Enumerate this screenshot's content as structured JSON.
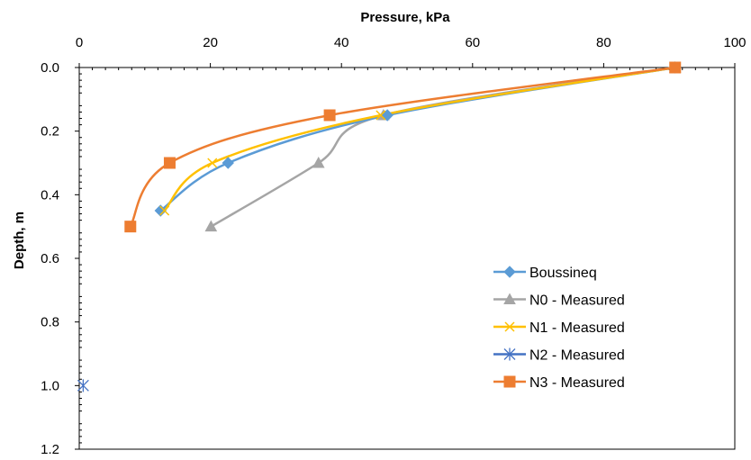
{
  "chart_data": {
    "type": "scatter",
    "title": "",
    "xlabel": "Pressure, kPa",
    "ylabel": "Depth, m",
    "xaxis_position": "top",
    "yaxis_reversed": true,
    "xlim": [
      0,
      100
    ],
    "ylim": [
      0,
      1.2
    ],
    "xticks": [
      0,
      20,
      40,
      60,
      80,
      100
    ],
    "yticks": [
      0.0,
      0.2,
      0.4,
      0.6,
      0.8,
      1.0,
      1.2
    ],
    "xtick_labels": [
      "0",
      "20",
      "40",
      "60",
      "80",
      "100"
    ],
    "ytick_labels": [
      "0.0",
      "0.2",
      "0.4",
      "0.6",
      "0.8",
      "1.0",
      "1.2"
    ],
    "grid": false,
    "legend_position": "bottom-right",
    "series": [
      {
        "name": "Boussineq",
        "color": "#5B9BD5",
        "marker": "diamond",
        "points": [
          {
            "x": 90.9,
            "y": 0.0
          },
          {
            "x": 47.0,
            "y": 0.15
          },
          {
            "x": 22.7,
            "y": 0.3
          },
          {
            "x": 12.4,
            "y": 0.45
          }
        ]
      },
      {
        "name": "N0 - Measured",
        "color": "#A5A5A5",
        "marker": "triangle",
        "points": [
          {
            "x": 90.9,
            "y": 0.0
          },
          {
            "x": 46.4,
            "y": 0.15
          },
          {
            "x": 36.5,
            "y": 0.3
          },
          {
            "x": 20.1,
            "y": 0.5
          }
        ]
      },
      {
        "name": "N1 - Measured",
        "color": "#FFC000",
        "marker": "x",
        "points": [
          {
            "x": 90.9,
            "y": 0.0
          },
          {
            "x": 46.0,
            "y": 0.15
          },
          {
            "x": 20.3,
            "y": 0.3
          },
          {
            "x": 13.0,
            "y": 0.45
          }
        ]
      },
      {
        "name": "N2 - Measured",
        "color": "#4472C4",
        "marker": "star",
        "points": [
          {
            "x": 0.6,
            "y": 1.0
          }
        ]
      },
      {
        "name": "N3 - Measured",
        "color": "#ED7D31",
        "marker": "square",
        "points": [
          {
            "x": 90.9,
            "y": 0.0
          },
          {
            "x": 38.2,
            "y": 0.15
          },
          {
            "x": 13.8,
            "y": 0.3
          },
          {
            "x": 7.8,
            "y": 0.5
          }
        ]
      }
    ]
  }
}
